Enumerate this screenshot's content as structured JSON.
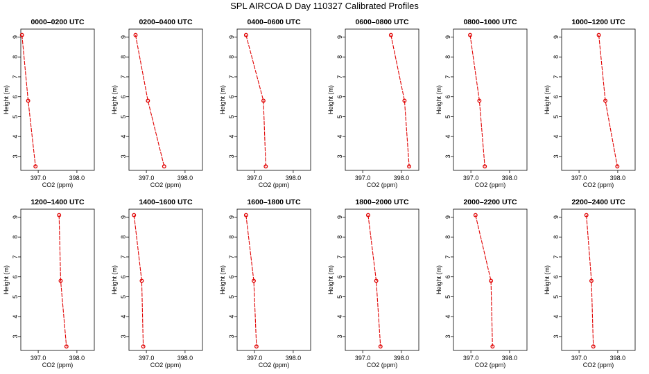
{
  "chart_data": {
    "title": "SPL AIRCOA D  Day 110327  Calibrated Profiles",
    "type": "line",
    "xlabel": "CO2 (ppm)",
    "ylabel": "Height (m)",
    "xlim": [
      396.55,
      398.45
    ],
    "ylim": [
      2.3,
      9.4
    ],
    "xticks": [
      397.0,
      398.0
    ],
    "xtick_labels": [
      "397.0",
      "398.0"
    ],
    "yticks": [
      3,
      4,
      5,
      6,
      7,
      8,
      9
    ],
    "ytick_labels": [
      "3",
      "4",
      "5",
      "6",
      "7",
      "8",
      "9"
    ],
    "heights": [
      9.1,
      5.8,
      2.5
    ],
    "line_color": "#e00000",
    "panels": [
      {
        "title": "0000–0200 UTC",
        "co2": [
          396.58,
          396.74,
          396.93
        ]
      },
      {
        "title": "0200–0400 UTC",
        "co2": [
          396.72,
          397.04,
          397.46
        ]
      },
      {
        "title": "0400–0600 UTC",
        "co2": [
          396.78,
          397.23,
          397.29
        ]
      },
      {
        "title": "0600–0800 UTC",
        "co2": [
          397.73,
          398.08,
          398.2
        ]
      },
      {
        "title": "0800–1000 UTC",
        "co2": [
          396.98,
          397.22,
          397.36
        ]
      },
      {
        "title": "1000–1200 UTC",
        "co2": [
          397.51,
          397.68,
          397.99
        ]
      },
      {
        "title": "1200–1400 UTC",
        "co2": [
          397.54,
          397.58,
          397.73
        ]
      },
      {
        "title": "1400–1600 UTC",
        "co2": [
          396.68,
          396.88,
          396.92
        ]
      },
      {
        "title": "1600–1800 UTC",
        "co2": [
          396.78,
          396.98,
          397.05
        ]
      },
      {
        "title": "1800–2000 UTC",
        "co2": [
          397.14,
          397.35,
          397.46
        ]
      },
      {
        "title": "2000–2200 UTC",
        "co2": [
          397.12,
          397.52,
          397.56
        ]
      },
      {
        "title": "2200–2400 UTC",
        "co2": [
          397.19,
          397.32,
          397.37
        ]
      }
    ]
  }
}
